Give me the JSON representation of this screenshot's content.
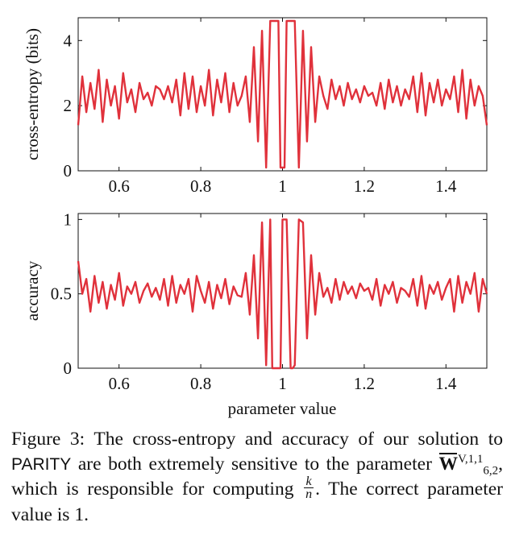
{
  "chart_data": [
    {
      "type": "line",
      "id": "top",
      "ylabel": "cross-entropy (bits)",
      "xlabel": "",
      "xlim": [
        0.5,
        1.5
      ],
      "ylim": [
        0,
        4.7
      ],
      "x_ticks": [
        0.6,
        0.8,
        1,
        1.2,
        1.4
      ],
      "x_tick_labels": [
        "0.6",
        "0.8",
        "1",
        "1.2",
        "1.4"
      ],
      "y_ticks": [
        0,
        2,
        4
      ],
      "y_tick_labels": [
        "0",
        "2",
        "4"
      ],
      "series_color": "#e0313b",
      "series": [
        {
          "name": "cross-entropy",
          "x": [
            0.5,
            0.51,
            0.52,
            0.53,
            0.54,
            0.55,
            0.56,
            0.57,
            0.58,
            0.59,
            0.6,
            0.61,
            0.62,
            0.63,
            0.64,
            0.65,
            0.66,
            0.67,
            0.68,
            0.69,
            0.7,
            0.71,
            0.72,
            0.73,
            0.74,
            0.75,
            0.76,
            0.77,
            0.78,
            0.79,
            0.8,
            0.81,
            0.82,
            0.83,
            0.84,
            0.85,
            0.86,
            0.87,
            0.88,
            0.89,
            0.9,
            0.91,
            0.92,
            0.93,
            0.94,
            0.95,
            0.96,
            0.97,
            0.975,
            0.98,
            0.99,
            0.995,
            1.0,
            1.005,
            1.01,
            1.02,
            1.025,
            1.03,
            1.04,
            1.05,
            1.06,
            1.07,
            1.08,
            1.09,
            1.1,
            1.11,
            1.12,
            1.13,
            1.14,
            1.15,
            1.16,
            1.17,
            1.18,
            1.19,
            1.2,
            1.21,
            1.22,
            1.23,
            1.24,
            1.25,
            1.26,
            1.27,
            1.28,
            1.29,
            1.3,
            1.31,
            1.32,
            1.33,
            1.34,
            1.35,
            1.36,
            1.37,
            1.38,
            1.39,
            1.4,
            1.41,
            1.42,
            1.43,
            1.44,
            1.45,
            1.46,
            1.47,
            1.48,
            1.49,
            1.5
          ],
          "values": [
            1.4,
            2.9,
            1.8,
            2.7,
            1.9,
            3.1,
            1.5,
            2.8,
            2.0,
            2.6,
            1.6,
            3.0,
            2.1,
            2.5,
            1.8,
            2.7,
            2.2,
            2.4,
            2.0,
            2.6,
            2.5,
            2.2,
            2.6,
            2.1,
            2.8,
            1.7,
            3.0,
            1.9,
            2.9,
            1.8,
            2.6,
            2.0,
            3.1,
            1.7,
            2.8,
            2.1,
            3.0,
            1.8,
            2.7,
            2.0,
            2.3,
            2.9,
            1.5,
            3.8,
            0.9,
            4.3,
            0.1,
            4.6,
            4.6,
            4.6,
            4.6,
            0.1,
            0.1,
            0.1,
            4.6,
            4.6,
            4.6,
            4.6,
            0.1,
            4.3,
            0.9,
            3.8,
            1.5,
            2.9,
            2.3,
            1.9,
            2.8,
            2.2,
            2.6,
            2.0,
            2.7,
            2.2,
            2.5,
            2.1,
            2.6,
            2.3,
            2.4,
            2.0,
            2.7,
            1.9,
            2.8,
            2.1,
            2.6,
            2.0,
            2.5,
            2.2,
            2.9,
            1.8,
            3.0,
            1.7,
            2.7,
            2.1,
            2.8,
            2.0,
            2.5,
            2.2,
            2.9,
            1.8,
            3.1,
            1.6,
            2.8,
            2.0,
            2.6,
            2.3,
            1.4
          ]
        }
      ]
    },
    {
      "type": "line",
      "id": "bottom",
      "ylabel": "accuracy",
      "xlabel": "parameter value",
      "xlim": [
        0.5,
        1.5
      ],
      "ylim": [
        0,
        1.04
      ],
      "x_ticks": [
        0.6,
        0.8,
        1,
        1.2,
        1.4
      ],
      "x_tick_labels": [
        "0.6",
        "0.8",
        "1",
        "1.2",
        "1.4"
      ],
      "y_ticks": [
        0,
        0.5,
        1
      ],
      "y_tick_labels": [
        "0",
        "0.5",
        "1"
      ],
      "series_color": "#e0313b",
      "series": [
        {
          "name": "accuracy",
          "x": [
            0.5,
            0.51,
            0.52,
            0.53,
            0.54,
            0.55,
            0.56,
            0.57,
            0.58,
            0.59,
            0.6,
            0.61,
            0.62,
            0.63,
            0.64,
            0.65,
            0.66,
            0.67,
            0.68,
            0.69,
            0.7,
            0.71,
            0.72,
            0.73,
            0.74,
            0.75,
            0.76,
            0.77,
            0.78,
            0.79,
            0.8,
            0.81,
            0.82,
            0.83,
            0.84,
            0.85,
            0.86,
            0.87,
            0.88,
            0.89,
            0.9,
            0.91,
            0.92,
            0.93,
            0.94,
            0.95,
            0.96,
            0.97,
            0.975,
            0.98,
            0.99,
            0.995,
            1.0,
            1.005,
            1.01,
            1.02,
            1.025,
            1.03,
            1.04,
            1.05,
            1.06,
            1.07,
            1.08,
            1.09,
            1.1,
            1.11,
            1.12,
            1.13,
            1.14,
            1.15,
            1.16,
            1.17,
            1.18,
            1.19,
            1.2,
            1.21,
            1.22,
            1.23,
            1.24,
            1.25,
            1.26,
            1.27,
            1.28,
            1.29,
            1.3,
            1.31,
            1.32,
            1.33,
            1.34,
            1.35,
            1.36,
            1.37,
            1.38,
            1.39,
            1.4,
            1.41,
            1.42,
            1.43,
            1.44,
            1.45,
            1.46,
            1.47,
            1.48,
            1.49,
            1.5
          ],
          "values": [
            0.72,
            0.5,
            0.6,
            0.38,
            0.62,
            0.44,
            0.58,
            0.4,
            0.56,
            0.46,
            0.64,
            0.42,
            0.55,
            0.5,
            0.58,
            0.44,
            0.52,
            0.57,
            0.48,
            0.54,
            0.46,
            0.6,
            0.42,
            0.62,
            0.44,
            0.56,
            0.5,
            0.6,
            0.38,
            0.62,
            0.52,
            0.44,
            0.58,
            0.4,
            0.56,
            0.47,
            0.6,
            0.43,
            0.55,
            0.49,
            0.48,
            0.64,
            0.36,
            0.76,
            0.2,
            0.98,
            0.02,
            1.0,
            0.0,
            0.0,
            0.0,
            0.0,
            1.0,
            1.0,
            1.0,
            0.0,
            0.0,
            0.02,
            1.0,
            0.98,
            0.2,
            0.76,
            0.36,
            0.64,
            0.48,
            0.54,
            0.44,
            0.6,
            0.46,
            0.58,
            0.5,
            0.55,
            0.47,
            0.57,
            0.52,
            0.54,
            0.46,
            0.6,
            0.42,
            0.56,
            0.5,
            0.58,
            0.44,
            0.54,
            0.52,
            0.48,
            0.6,
            0.42,
            0.62,
            0.4,
            0.56,
            0.5,
            0.58,
            0.46,
            0.54,
            0.6,
            0.38,
            0.62,
            0.44,
            0.58,
            0.5,
            0.64,
            0.38,
            0.6,
            0.5
          ]
        }
      ]
    }
  ],
  "caption": {
    "figure_label": "Figure 3:",
    "text_1": "The cross-entropy and accuracy of our solution to",
    "parity": "PARITY",
    "text_2": "are both extremely sensitive to the parameter",
    "w_symbol": "W",
    "w_sup": "V,1,1",
    "w_sub": "6,2",
    "text_3": ", which is responsible for computing",
    "frac_num": "k",
    "frac_den": "n",
    "text_4": ".",
    "text_5": "The correct parameter value is 1."
  }
}
